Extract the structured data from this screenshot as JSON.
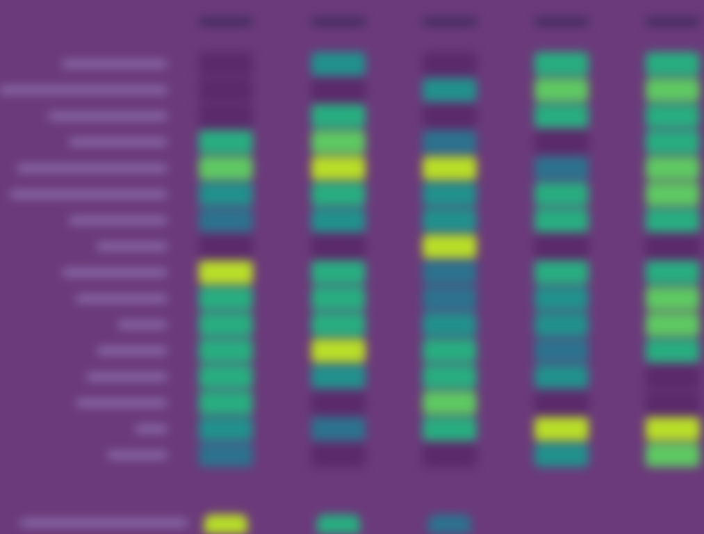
{
  "colors": {
    "background": "#6b3a7a",
    "empty_cell": "#5a2a6a",
    "colormap": [
      "#3b528b",
      "#2c728e",
      "#21918c",
      "#28ae80",
      "#5ec962",
      "#b8de29"
    ]
  },
  "chart_data": {
    "type": "heatmap",
    "title": "",
    "xlabel": "",
    "ylabel": "",
    "grid": false,
    "columns": [
      "",
      "",
      "",
      "",
      ""
    ],
    "rows": [
      "",
      "",
      "",
      "",
      "",
      "",
      "",
      "",
      "",
      "",
      "",
      "",
      "",
      "",
      "",
      ""
    ],
    "values": [
      [
        null,
        0.45,
        null,
        0.55,
        0.5
      ],
      [
        null,
        null,
        0.35,
        0.75,
        0.7
      ],
      [
        null,
        0.55,
        null,
        0.6,
        0.6
      ],
      [
        0.55,
        0.8,
        0.3,
        null,
        0.6
      ],
      [
        0.7,
        0.95,
        0.85,
        0.3,
        0.7
      ],
      [
        0.4,
        0.6,
        0.4,
        0.5,
        0.75
      ],
      [
        0.3,
        0.35,
        0.35,
        0.65,
        0.6
      ],
      [
        null,
        null,
        0.95,
        null,
        null
      ],
      [
        0.9,
        0.55,
        0.3,
        0.5,
        0.55
      ],
      [
        0.65,
        0.65,
        0.25,
        0.4,
        0.7
      ],
      [
        0.55,
        0.5,
        0.35,
        0.35,
        0.75
      ],
      [
        0.6,
        0.85,
        0.5,
        0.3,
        0.65
      ],
      [
        0.55,
        0.45,
        0.6,
        0.4,
        null
      ],
      [
        0.5,
        null,
        0.8,
        null,
        null
      ],
      [
        0.35,
        0.3,
        0.55,
        0.85,
        0.9
      ],
      [
        0.3,
        null,
        null,
        0.4,
        0.8
      ]
    ],
    "partial_bottom_row": [
      0.85,
      0.55,
      0.3,
      null,
      null
    ]
  }
}
